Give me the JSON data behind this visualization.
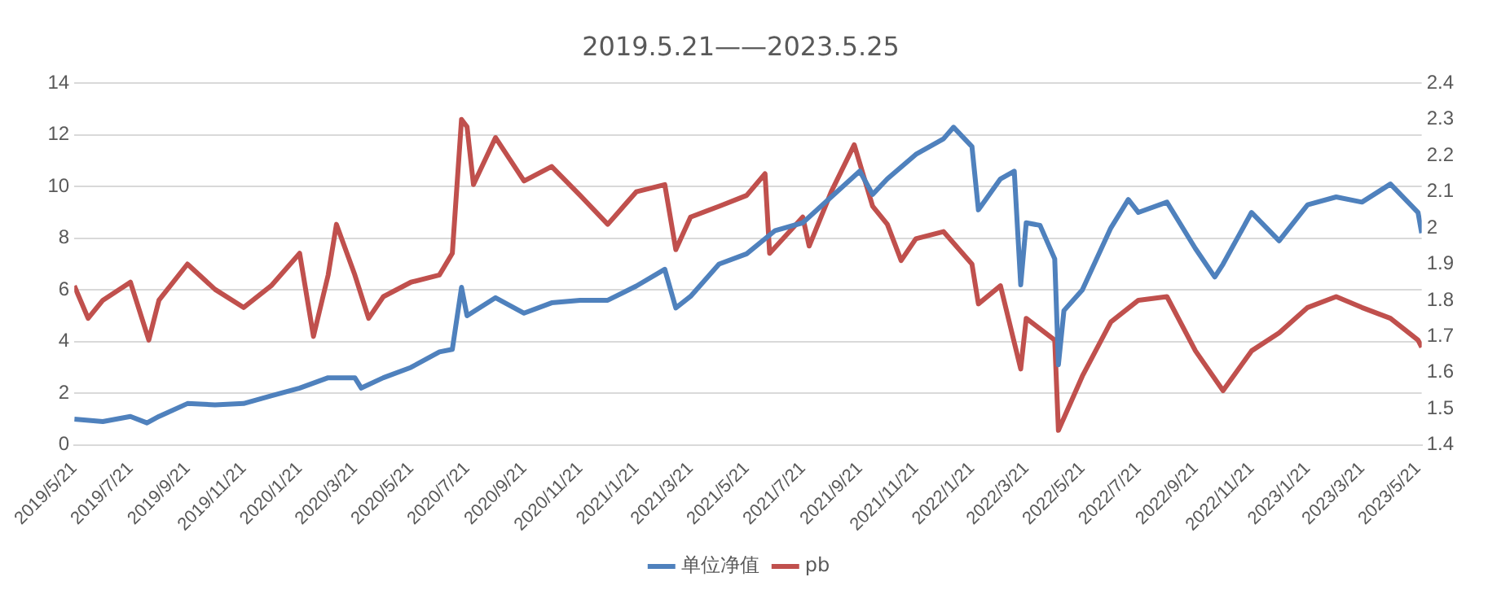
{
  "chart_data": {
    "type": "line",
    "title": "2019.5.21——2023.5.25",
    "legend": "bottom",
    "grid": "y",
    "marker": "none",
    "line_style": "solid",
    "xlim": [
      "2019-05-21",
      "2023-05-25"
    ],
    "xticks": [
      {
        "value": "2019-05-21",
        "label": "2019/5/21"
      },
      {
        "value": "2019-07-21",
        "label": "2019/7/21"
      },
      {
        "value": "2019-09-21",
        "label": "2019/9/21"
      },
      {
        "value": "2019-11-21",
        "label": "2019/11/21"
      },
      {
        "value": "2020-01-21",
        "label": "2020/1/21"
      },
      {
        "value": "2020-03-21",
        "label": "2020/3/21"
      },
      {
        "value": "2020-05-21",
        "label": "2020/5/21"
      },
      {
        "value": "2020-07-21",
        "label": "2020/7/21"
      },
      {
        "value": "2020-09-21",
        "label": "2020/9/21"
      },
      {
        "value": "2020-11-21",
        "label": "2020/11/21"
      },
      {
        "value": "2021-01-21",
        "label": "2021/1/21"
      },
      {
        "value": "2021-03-21",
        "label": "2021/3/21"
      },
      {
        "value": "2021-05-21",
        "label": "2021/5/21"
      },
      {
        "value": "2021-07-21",
        "label": "2021/7/21"
      },
      {
        "value": "2021-09-21",
        "label": "2021/9/21"
      },
      {
        "value": "2021-11-21",
        "label": "2021/11/21"
      },
      {
        "value": "2022-01-21",
        "label": "2022/1/21"
      },
      {
        "value": "2022-03-21",
        "label": "2022/3/21"
      },
      {
        "value": "2022-05-21",
        "label": "2022/5/21"
      },
      {
        "value": "2022-07-21",
        "label": "2022/7/21"
      },
      {
        "value": "2022-09-21",
        "label": "2022/9/21"
      },
      {
        "value": "2022-11-21",
        "label": "2022/11/21"
      },
      {
        "value": "2023-01-21",
        "label": "2023/1/21"
      },
      {
        "value": "2023-03-21",
        "label": "2023/3/21"
      },
      {
        "value": "2023-05-21",
        "label": "2023/5/21"
      }
    ],
    "ylim": [
      0,
      14
    ],
    "yticks": [
      0,
      2,
      4,
      6,
      8,
      10,
      12,
      14
    ],
    "y2lim": [
      1.4,
      2.4
    ],
    "y2ticks": [
      1.4,
      1.5,
      1.6,
      1.7,
      1.8,
      1.9,
      2,
      2.1,
      2.2,
      2.3,
      2.4
    ],
    "series": [
      {
        "name": "单位净值",
        "color": "#4f81bd",
        "x": [
          "2019-05-21",
          "2019-06-21",
          "2019-07-21",
          "2019-08-08",
          "2019-08-21",
          "2019-09-21",
          "2019-10-21",
          "2019-11-21",
          "2019-12-21",
          "2020-01-21",
          "2020-02-21",
          "2020-03-21",
          "2020-03-28",
          "2020-04-21",
          "2020-05-21",
          "2020-06-21",
          "2020-07-05",
          "2020-07-15",
          "2020-07-21",
          "2020-08-21",
          "2020-09-21",
          "2020-10-21",
          "2020-11-21",
          "2020-12-21",
          "2021-01-21",
          "2021-02-21",
          "2021-03-05",
          "2021-03-21",
          "2021-04-21",
          "2021-05-21",
          "2021-06-21",
          "2021-07-21",
          "2021-08-21",
          "2021-09-21",
          "2021-10-05",
          "2021-10-21",
          "2021-11-21",
          "2021-12-21",
          "2022-01-01",
          "2022-01-21",
          "2022-01-28",
          "2022-02-21",
          "2022-03-08",
          "2022-03-15",
          "2022-03-21",
          "2022-04-05",
          "2022-04-21",
          "2022-04-25",
          "2022-05-01",
          "2022-05-21",
          "2022-06-21",
          "2022-07-10",
          "2022-07-21",
          "2022-08-21",
          "2022-09-21",
          "2022-10-12",
          "2022-10-21",
          "2022-11-21",
          "2022-12-21",
          "2023-01-21",
          "2023-02-21",
          "2023-03-21",
          "2023-04-21",
          "2023-05-21",
          "2023-05-25"
        ],
        "values": [
          1.0,
          0.9,
          1.1,
          0.85,
          1.1,
          1.6,
          1.55,
          1.6,
          1.9,
          2.2,
          2.6,
          2.6,
          2.2,
          2.6,
          3.0,
          3.6,
          3.7,
          6.1,
          5.0,
          5.7,
          5.1,
          5.5,
          5.6,
          5.6,
          6.15,
          6.8,
          5.3,
          5.75,
          7.0,
          7.4,
          8.3,
          8.6,
          9.6,
          10.6,
          9.7,
          10.3,
          11.25,
          11.85,
          12.3,
          11.55,
          9.1,
          10.3,
          10.6,
          6.2,
          8.6,
          8.5,
          7.2,
          3.1,
          5.2,
          6.0,
          8.4,
          9.5,
          9.0,
          9.4,
          7.6,
          6.5,
          7.0,
          9.0,
          7.9,
          9.3,
          9.6,
          9.4,
          10.1,
          9.0,
          8.2
        ]
      },
      {
        "name": "pb",
        "color": "#c0504d",
        "axis": "y2",
        "x": [
          "2019-05-21",
          "2019-06-05",
          "2019-06-21",
          "2019-07-21",
          "2019-08-10",
          "2019-08-21",
          "2019-09-21",
          "2019-10-21",
          "2019-11-21",
          "2019-12-21",
          "2020-01-21",
          "2020-02-05",
          "2020-02-21",
          "2020-03-01",
          "2020-03-21",
          "2020-04-05",
          "2020-04-21",
          "2020-05-21",
          "2020-06-21",
          "2020-07-05",
          "2020-07-15",
          "2020-07-21",
          "2020-07-28",
          "2020-08-21",
          "2020-09-21",
          "2020-10-21",
          "2020-11-21",
          "2020-12-21",
          "2021-01-21",
          "2021-02-21",
          "2021-03-05",
          "2021-03-21",
          "2021-04-21",
          "2021-05-21",
          "2021-06-10",
          "2021-06-15",
          "2021-07-21",
          "2021-07-28",
          "2021-08-21",
          "2021-09-15",
          "2021-10-05",
          "2021-10-21",
          "2021-11-05",
          "2021-11-21",
          "2021-12-21",
          "2022-01-21",
          "2022-01-28",
          "2022-02-21",
          "2022-03-15",
          "2022-03-21",
          "2022-04-21",
          "2022-04-25",
          "2022-05-21",
          "2022-06-21",
          "2022-07-21",
          "2022-08-21",
          "2022-09-21",
          "2022-10-21",
          "2022-11-21",
          "2022-12-21",
          "2023-01-21",
          "2023-02-21",
          "2023-03-21",
          "2023-04-21",
          "2023-05-21",
          "2023-05-25"
        ],
        "values": [
          1.84,
          1.75,
          1.8,
          1.85,
          1.69,
          1.8,
          1.9,
          1.83,
          1.78,
          1.84,
          1.93,
          1.7,
          1.87,
          2.01,
          1.87,
          1.75,
          1.81,
          1.85,
          1.87,
          1.93,
          2.3,
          2.28,
          2.12,
          2.25,
          2.13,
          2.17,
          2.09,
          2.01,
          2.1,
          2.12,
          1.94,
          2.03,
          2.06,
          2.09,
          2.15,
          1.93,
          2.03,
          1.95,
          2.1,
          2.23,
          2.06,
          2.01,
          1.91,
          1.97,
          1.99,
          1.9,
          1.79,
          1.84,
          1.61,
          1.75,
          1.69,
          1.44,
          1.59,
          1.74,
          1.8,
          1.81,
          1.66,
          1.55,
          1.66,
          1.71,
          1.78,
          1.81,
          1.78,
          1.75,
          1.69,
          1.67
        ]
      }
    ]
  }
}
